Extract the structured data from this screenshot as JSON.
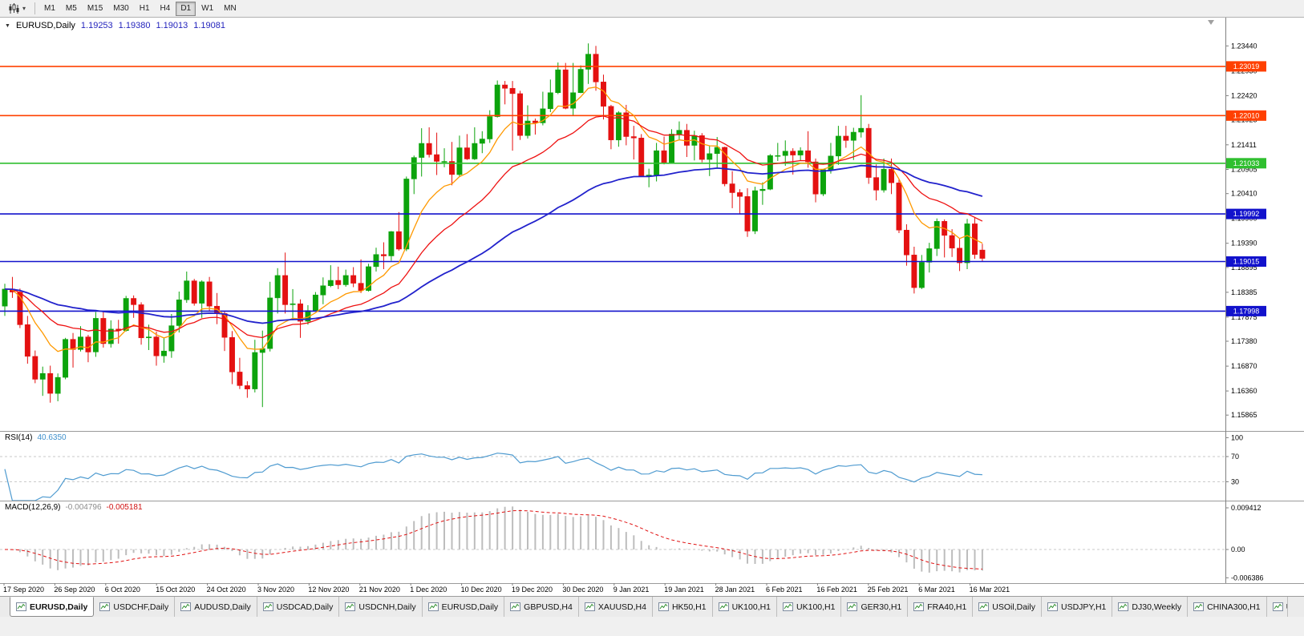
{
  "toolbar": {
    "chart_type_icon": "candlestick-chart-icon",
    "dropdown_icon": "chevron-down-icon",
    "timeframes": [
      "M1",
      "M5",
      "M15",
      "M30",
      "H1",
      "H4",
      "D1",
      "W1",
      "MN"
    ],
    "active_timeframe": "D1"
  },
  "chart_header": {
    "symbol": "EURUSD,Daily",
    "open": "1.19253",
    "high": "1.19380",
    "low": "1.19013",
    "close": "1.19081"
  },
  "colors": {
    "up": "#0ca30c",
    "down": "#e41111",
    "background": "#ffffff",
    "separator": "#9a9a9a",
    "axis": "#808080"
  },
  "price_axis": {
    "ticks": [
      "1.23440",
      "1.22930",
      "1.22420",
      "1.21925",
      "1.21411",
      "1.20905",
      "1.20410",
      "1.19900",
      "1.19390",
      "1.18895",
      "1.18385",
      "1.17875",
      "1.17380",
      "1.16870",
      "1.16360",
      "1.15865"
    ]
  },
  "hlines": [
    {
      "price": 1.23019,
      "label": "1.23019",
      "color": "#ff4000"
    },
    {
      "price": 1.2201,
      "label": "1.22010",
      "color": "#ff4000"
    },
    {
      "price": 1.21033,
      "label": "1.21033",
      "color": "#2fbf2f"
    },
    {
      "price": 1.19992,
      "label": "1.19992",
      "color": "#1212cc"
    },
    {
      "price": 1.19015,
      "label": "1.19015",
      "color": "#1212cc"
    },
    {
      "price": 1.17998,
      "label": "1.17998",
      "color": "#1212cc"
    }
  ],
  "chart_data": {
    "type": "candlestick",
    "symbol": "EURUSD",
    "timeframe": "Daily",
    "x_labels": [
      "17 Sep 2020",
      "26 Sep 2020",
      "6 Oct 2020",
      "15 Oct 2020",
      "24 Oct 2020",
      "3 Nov 2020",
      "12 Nov 2020",
      "21 Nov 2020",
      "1 Dec 2020",
      "10 Dec 2020",
      "19 Dec 2020",
      "30 Dec 2020",
      "9 Jan 2021",
      "19 Jan 2021",
      "28 Jan 2021",
      "6 Feb 2021",
      "16 Feb 2021",
      "25 Feb 2021",
      "6 Mar 2021",
      "16 Mar 2021"
    ],
    "moving_averages": [
      {
        "name": "fast",
        "period": 9,
        "method": "ema",
        "color": "#ff9900"
      },
      {
        "name": "mid",
        "period": 21,
        "method": "ema",
        "color": "#ee1111"
      },
      {
        "name": "slow",
        "period": 55,
        "method": "ema",
        "color": "#2222cc"
      }
    ],
    "candles": [
      [
        1.181,
        1.1856,
        1.179,
        1.1845
      ],
      [
        1.1845,
        1.187,
        1.1827,
        1.1839
      ],
      [
        1.1839,
        1.1846,
        1.1765,
        1.1772
      ],
      [
        1.1772,
        1.179,
        1.1692,
        1.1707
      ],
      [
        1.1707,
        1.1719,
        1.1652,
        1.166
      ],
      [
        1.166,
        1.1686,
        1.1626,
        1.1672
      ],
      [
        1.1672,
        1.1688,
        1.1612,
        1.1631
      ],
      [
        1.1631,
        1.1672,
        1.1615,
        1.1664
      ],
      [
        1.1664,
        1.1745,
        1.166,
        1.1742
      ],
      [
        1.1742,
        1.1755,
        1.1684,
        1.1721
      ],
      [
        1.1721,
        1.1769,
        1.1717,
        1.1747
      ],
      [
        1.1747,
        1.1751,
        1.1695,
        1.1716
      ],
      [
        1.1716,
        1.1798,
        1.1706,
        1.1785
      ],
      [
        1.1785,
        1.1799,
        1.1725,
        1.1733
      ],
      [
        1.1733,
        1.1781,
        1.1725,
        1.1763
      ],
      [
        1.1763,
        1.1782,
        1.1733,
        1.176
      ],
      [
        1.176,
        1.1831,
        1.1758,
        1.1826
      ],
      [
        1.1826,
        1.1832,
        1.1786,
        1.1813
      ],
      [
        1.1813,
        1.1818,
        1.1731,
        1.1745
      ],
      [
        1.1745,
        1.1772,
        1.172,
        1.1747
      ],
      [
        1.1747,
        1.1758,
        1.1688,
        1.1708
      ],
      [
        1.1708,
        1.1746,
        1.1694,
        1.1718
      ],
      [
        1.1718,
        1.1794,
        1.1704,
        1.177
      ],
      [
        1.177,
        1.184,
        1.1756,
        1.1823
      ],
      [
        1.1823,
        1.1881,
        1.1817,
        1.1862
      ],
      [
        1.1862,
        1.1866,
        1.1811,
        1.1816
      ],
      [
        1.1816,
        1.1863,
        1.1786,
        1.186
      ],
      [
        1.186,
        1.187,
        1.18,
        1.181
      ],
      [
        1.181,
        1.1837,
        1.1773,
        1.1795
      ],
      [
        1.1795,
        1.18,
        1.1718,
        1.1746
      ],
      [
        1.1746,
        1.1759,
        1.165,
        1.1675
      ],
      [
        1.1675,
        1.1704,
        1.164,
        1.1647
      ],
      [
        1.1647,
        1.1656,
        1.1622,
        1.164
      ],
      [
        1.164,
        1.1741,
        1.1633,
        1.1715
      ],
      [
        1.1715,
        1.176,
        1.1603,
        1.1723
      ],
      [
        1.1723,
        1.186,
        1.1717,
        1.1827
      ],
      [
        1.1827,
        1.1888,
        1.1795,
        1.1873
      ],
      [
        1.1873,
        1.192,
        1.1795,
        1.1813
      ],
      [
        1.1813,
        1.1845,
        1.1781,
        1.1815
      ],
      [
        1.1815,
        1.1824,
        1.1745,
        1.1779
      ],
      [
        1.1779,
        1.1812,
        1.1772,
        1.1801
      ],
      [
        1.1801,
        1.1839,
        1.1799,
        1.1833
      ],
      [
        1.1833,
        1.1869,
        1.1814,
        1.1852
      ],
      [
        1.1852,
        1.1894,
        1.1849,
        1.1863
      ],
      [
        1.1863,
        1.1891,
        1.1845,
        1.1854
      ],
      [
        1.1854,
        1.1885,
        1.185,
        1.1873
      ],
      [
        1.1873,
        1.189,
        1.1849,
        1.1857
      ],
      [
        1.1857,
        1.1906,
        1.1837,
        1.1842
      ],
      [
        1.1842,
        1.1897,
        1.184,
        1.1891
      ],
      [
        1.1891,
        1.193,
        1.1881,
        1.1916
      ],
      [
        1.1916,
        1.1941,
        1.1886,
        1.1913
      ],
      [
        1.1913,
        1.1964,
        1.1903,
        1.1963
      ],
      [
        1.1963,
        1.2003,
        1.1924,
        1.1927
      ],
      [
        1.1927,
        1.2076,
        1.1923,
        1.2071
      ],
      [
        1.2071,
        1.2119,
        1.204,
        1.2115
      ],
      [
        1.2115,
        1.2175,
        1.2076,
        1.2144
      ],
      [
        1.2144,
        1.2177,
        1.2115,
        1.2121
      ],
      [
        1.2121,
        1.2166,
        1.2079,
        1.2107
      ],
      [
        1.2107,
        1.2134,
        1.2095,
        1.2107
      ],
      [
        1.2107,
        1.2147,
        1.2058,
        1.208
      ],
      [
        1.208,
        1.216,
        1.2076,
        1.2135
      ],
      [
        1.2135,
        1.2163,
        1.211,
        1.2112
      ],
      [
        1.2112,
        1.2177,
        1.211,
        1.2144
      ],
      [
        1.2144,
        1.2169,
        1.2124,
        1.2153
      ],
      [
        1.2153,
        1.2212,
        1.2145,
        1.2199
      ],
      [
        1.2199,
        1.2273,
        1.2197,
        1.2264
      ],
      [
        1.2264,
        1.2272,
        1.2224,
        1.2257
      ],
      [
        1.2257,
        1.2272,
        1.2129,
        1.2246
      ],
      [
        1.2246,
        1.2252,
        1.2151,
        1.216
      ],
      [
        1.216,
        1.2222,
        1.2154,
        1.219
      ],
      [
        1.219,
        1.2195,
        1.2162,
        1.2186
      ],
      [
        1.2186,
        1.225,
        1.2181,
        1.2215
      ],
      [
        1.2215,
        1.2275,
        1.2208,
        1.2248
      ],
      [
        1.2248,
        1.231,
        1.2245,
        1.2295
      ],
      [
        1.2295,
        1.2309,
        1.2214,
        1.2216
      ],
      [
        1.2216,
        1.2309,
        1.22,
        1.2248
      ],
      [
        1.2248,
        1.2304,
        1.2247,
        1.2296
      ],
      [
        1.2296,
        1.2349,
        1.2266,
        1.2327
      ],
      [
        1.2327,
        1.2344,
        1.2252,
        1.227
      ],
      [
        1.227,
        1.2285,
        1.2193,
        1.222
      ],
      [
        1.222,
        1.2223,
        1.2132,
        1.2151
      ],
      [
        1.2151,
        1.221,
        1.2137,
        1.2207
      ],
      [
        1.2207,
        1.2223,
        1.214,
        1.2158
      ],
      [
        1.2158,
        1.218,
        1.2111,
        1.2155
      ],
      [
        1.2155,
        1.2163,
        1.2075,
        1.2077
      ],
      [
        1.2077,
        1.2092,
        1.2054,
        1.2079
      ],
      [
        1.2079,
        1.2145,
        1.2066,
        1.2129
      ],
      [
        1.2129,
        1.2158,
        1.2101,
        1.2105
      ],
      [
        1.2105,
        1.2173,
        1.2104,
        1.2163
      ],
      [
        1.2163,
        1.2189,
        1.2151,
        1.2171
      ],
      [
        1.2171,
        1.2184,
        1.2116,
        1.214
      ],
      [
        1.214,
        1.217,
        1.2109,
        1.216
      ],
      [
        1.216,
        1.2165,
        1.2105,
        1.2111
      ],
      [
        1.2111,
        1.2139,
        1.2077,
        1.2123
      ],
      [
        1.2123,
        1.2157,
        1.2093,
        1.2136
      ],
      [
        1.2136,
        1.2137,
        1.2056,
        1.2061
      ],
      [
        1.2061,
        1.2087,
        1.2011,
        1.2043
      ],
      [
        1.2043,
        1.205,
        1.1999,
        1.2035
      ],
      [
        1.2035,
        1.2052,
        1.1952,
        1.1964
      ],
      [
        1.1964,
        1.2055,
        1.1958,
        1.2047
      ],
      [
        1.2047,
        1.2064,
        1.2018,
        1.205
      ],
      [
        1.205,
        1.2122,
        1.2048,
        1.2119
      ],
      [
        1.2119,
        1.2145,
        1.2108,
        1.2119
      ],
      [
        1.2119,
        1.215,
        1.2098,
        1.2128
      ],
      [
        1.2128,
        1.2134,
        1.208,
        1.212
      ],
      [
        1.212,
        1.2136,
        1.2108,
        1.2129
      ],
      [
        1.2129,
        1.2169,
        1.2094,
        1.2106
      ],
      [
        1.2106,
        1.2113,
        1.2023,
        1.204
      ],
      [
        1.204,
        1.2091,
        1.2036,
        1.209
      ],
      [
        1.209,
        1.2145,
        1.2082,
        1.2118
      ],
      [
        1.2118,
        1.218,
        1.21,
        1.2159
      ],
      [
        1.2159,
        1.218,
        1.2135,
        1.215
      ],
      [
        1.215,
        1.2176,
        1.211,
        1.2167
      ],
      [
        1.2167,
        1.2243,
        1.2156,
        1.2175
      ],
      [
        1.2175,
        1.2184,
        1.2061,
        1.2074
      ],
      [
        1.2074,
        1.2101,
        1.2027,
        1.2048
      ],
      [
        1.2048,
        1.2113,
        1.2043,
        1.2091
      ],
      [
        1.2091,
        1.2113,
        1.204,
        1.2063
      ],
      [
        1.2063,
        1.207,
        1.196,
        1.1966
      ],
      [
        1.1966,
        1.1978,
        1.1893,
        1.1915
      ],
      [
        1.1915,
        1.1932,
        1.1836,
        1.1848
      ],
      [
        1.1848,
        1.1915,
        1.1845,
        1.19
      ],
      [
        1.19,
        1.194,
        1.1879,
        1.1928
      ],
      [
        1.1928,
        1.199,
        1.1913,
        1.1984
      ],
      [
        1.1984,
        1.1988,
        1.191,
        1.1955
      ],
      [
        1.1955,
        1.1968,
        1.1911,
        1.1929
      ],
      [
        1.1929,
        1.195,
        1.1882,
        1.1899
      ],
      [
        1.1899,
        1.1989,
        1.1886,
        1.1979
      ],
      [
        1.1979,
        1.1993,
        1.1907,
        1.1916
      ],
      [
        1.19253,
        1.1938,
        1.19013,
        1.19081
      ]
    ]
  },
  "rsi": {
    "label": "RSI(14)",
    "period": 14,
    "value": "40.6350",
    "levels": [
      70,
      30
    ],
    "ticks": [
      "100",
      "70",
      "30"
    ],
    "color": "#4f9bd0"
  },
  "macd": {
    "label": "MACD(12,26,9)",
    "fast": 12,
    "slow": 26,
    "signal": 9,
    "value_macd": "-0.004796",
    "value_signal": "-0.005181",
    "ticks": [
      "0.009412",
      "0.00",
      "-0.006386"
    ],
    "histogram_color": "#bdbdbd",
    "signal_color": "#e01010"
  },
  "tabs": [
    {
      "label": "EURUSD,Daily",
      "active": true
    },
    {
      "label": "USDCHF,Daily",
      "active": false
    },
    {
      "label": "AUDUSD,Daily",
      "active": false
    },
    {
      "label": "USDCAD,Daily",
      "active": false
    },
    {
      "label": "USDCNH,Daily",
      "active": false
    },
    {
      "label": "EURUSD,Daily",
      "active": false
    },
    {
      "label": "GBPUSD,H4",
      "active": false
    },
    {
      "label": "XAUUSD,H4",
      "active": false
    },
    {
      "label": "HK50,H1",
      "active": false
    },
    {
      "label": "UK100,H1",
      "active": false
    },
    {
      "label": "UK100,H1",
      "active": false
    },
    {
      "label": "GER30,H1",
      "active": false
    },
    {
      "label": "FRA40,H1",
      "active": false
    },
    {
      "label": "USOil,Daily",
      "active": false
    },
    {
      "label": "USDJPY,H1",
      "active": false
    },
    {
      "label": "DJ30,Weekly",
      "active": false
    },
    {
      "label": "CHINA300,H1",
      "active": false
    },
    {
      "label": "USO",
      "active": false,
      "clipped": true
    }
  ]
}
